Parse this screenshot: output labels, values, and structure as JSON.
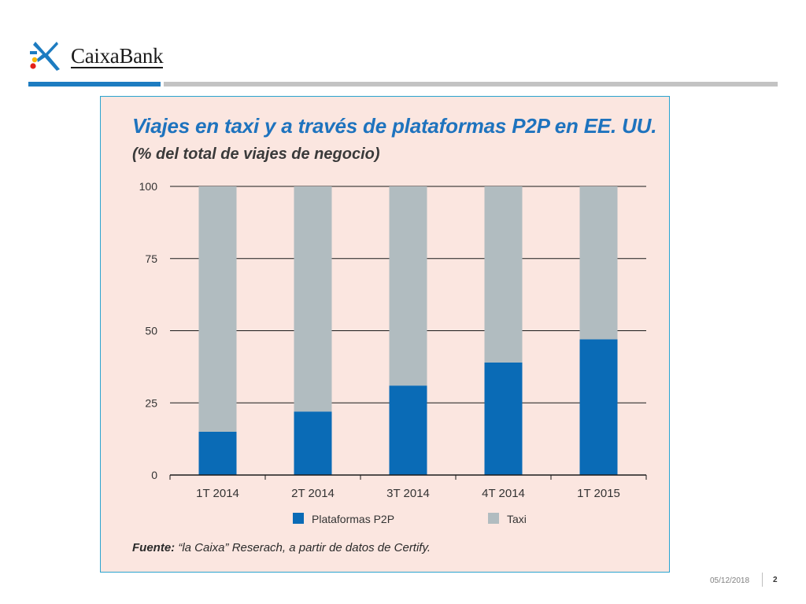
{
  "brand": {
    "name": "CaixaBank"
  },
  "colors": {
    "brand_blue": "#1d7cc1",
    "rule_grey": "#c3c3c3",
    "panel_bg": "#fbe6e0",
    "p2p": "#0a6bb6",
    "taxi": "#b1bcc0"
  },
  "chart_data": {
    "type": "bar",
    "stacked": true,
    "title": "Viajes en taxi y a través de plataformas P2P en EE. UU.",
    "subtitle": "(% del total de viajes de negocio)",
    "categories": [
      "1T 2014",
      "2T 2014",
      "3T 2014",
      "4T 2014",
      "1T 2015"
    ],
    "series": [
      {
        "name": "Plataformas P2P",
        "color": "#0a6bb6",
        "values": [
          15,
          22,
          31,
          39,
          47
        ]
      },
      {
        "name": "Taxi",
        "color": "#b1bcc0",
        "values": [
          85,
          78,
          69,
          61,
          53
        ]
      }
    ],
    "ylim": [
      0,
      100
    ],
    "yticks": [
      0,
      25,
      50,
      75,
      100
    ],
    "grid": true,
    "legend": "bottom",
    "source_label": "Fuente:",
    "source_text": " “la Caixa” Reserach, a partir de datos de Certify."
  },
  "footer": {
    "date": "05/12/2018",
    "page": "2"
  }
}
